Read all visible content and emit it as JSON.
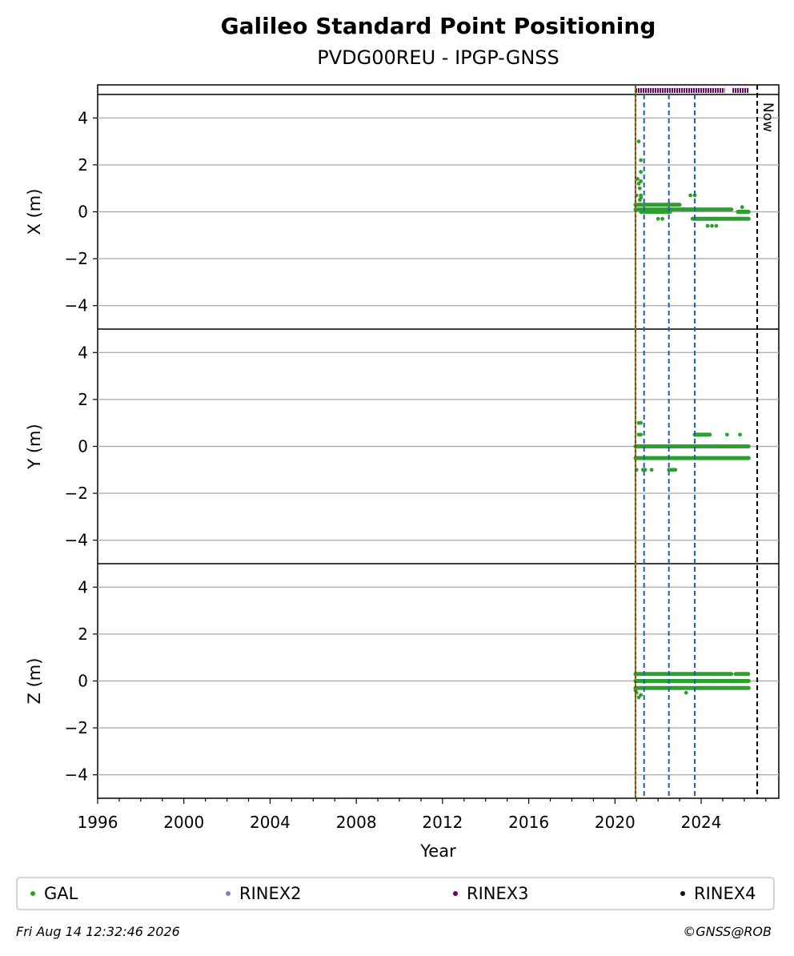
{
  "colors": {
    "gal": "#2ca02c",
    "rinex2": "#8080c0",
    "rinex3": "#660066",
    "rinex4": "#111111",
    "red_line": "#e00000",
    "blue_dash": "#1f5fb0",
    "grid": "#b0b0b0"
  },
  "footer": {
    "timestamp": "Fri Aug 14 12:32:46 2026",
    "credit": "©GNSS@ROB"
  },
  "chart_data": {
    "type": "scatter",
    "title": "Galileo Standard Point Positioning",
    "subtitle": "PVDG00REU - IPGP-GNSS",
    "xlabel": "Year",
    "xlim": [
      1996,
      2027.6
    ],
    "xticks": [
      1996,
      2000,
      2004,
      2008,
      2012,
      2016,
      2020,
      2024
    ],
    "ylim": [
      -5,
      5
    ],
    "yticks": [
      4,
      2,
      0,
      -2,
      -4
    ],
    "grid": "horizontal",
    "legend_placement": "bottom",
    "legend": [
      {
        "name": "GAL",
        "color_key": "gal"
      },
      {
        "name": "RINEX2",
        "color_key": "rinex2"
      },
      {
        "name": "RINEX3",
        "color_key": "rinex3"
      },
      {
        "name": "RINEX4",
        "color_key": "rinex4"
      }
    ],
    "now_label": "Now",
    "now_year": 2026.6,
    "red_line_year": 2020.95,
    "event_lines": [
      2021.35,
      2022.5,
      2023.7
    ],
    "rinex3_availability": {
      "y": 5.2,
      "segments": [
        [
          2020.95,
          2025.1
        ],
        [
          2025.45,
          2026.2
        ]
      ]
    },
    "panels": [
      {
        "ylabel": "X (m)",
        "series": [
          {
            "name": "GAL",
            "x": [
              2020.95,
              2023.0
            ],
            "y": [
              0.3,
              0.3
            ]
          },
          {
            "name": "GAL",
            "x": [
              2020.95,
              2023.6
            ],
            "y": [
              0.1,
              0.1
            ]
          },
          {
            "name": "GAL",
            "x": [
              2021.2,
              2022.6
            ],
            "y": [
              0.0,
              0.0
            ]
          },
          {
            "name": "GAL",
            "x": [
              2023.0,
              2025.4
            ],
            "y": [
              0.1,
              0.1
            ]
          },
          {
            "name": "GAL",
            "x": [
              2023.6,
              2026.2
            ],
            "y": [
              -0.3,
              -0.3
            ]
          },
          {
            "name": "GAL",
            "x": [
              2025.7,
              2026.2
            ],
            "y": [
              0.0,
              0.0
            ]
          }
        ],
        "outliers": {
          "x": [
            2021.0,
            2021.05,
            2021.1,
            2021.15,
            2021.2,
            2021.1,
            2021.2,
            2021.2,
            2021.0,
            2021.2,
            2021.15,
            2021.2,
            2023.5,
            2023.7,
            2022.0,
            2022.2,
            2024.3,
            2024.5,
            2024.7,
            2025.9
          ],
          "y": [
            1.4,
            1.4,
            1.2,
            1.0,
            1.3,
            3.0,
            2.2,
            1.7,
            0.7,
            0.7,
            0.5,
            0.6,
            0.7,
            0.7,
            -0.3,
            -0.3,
            -0.6,
            -0.6,
            -0.6,
            0.2
          ]
        }
      },
      {
        "ylabel": "Y (m)",
        "series": [
          {
            "name": "GAL",
            "x": [
              2020.95,
              2026.2
            ],
            "y": [
              0.0,
              0.0
            ]
          },
          {
            "name": "GAL",
            "x": [
              2020.95,
              2026.2
            ],
            "y": [
              -0.5,
              -0.5
            ]
          },
          {
            "name": "GAL",
            "x": [
              2023.7,
              2024.4
            ],
            "y": [
              0.5,
              0.5
            ]
          }
        ],
        "outliers": {
          "x": [
            2021.1,
            2021.2,
            2021.3,
            2021.4,
            2021.7,
            2022.5,
            2022.6,
            2022.7,
            2022.8,
            2021.1,
            2021.2,
            2025.2,
            2025.8,
            2021.0
          ],
          "y": [
            1.0,
            1.0,
            -1.0,
            -1.0,
            -1.0,
            -1.0,
            -1.0,
            -1.0,
            -1.0,
            0.5,
            0.5,
            0.5,
            0.5,
            -1.0
          ]
        }
      },
      {
        "ylabel": "Z (m)",
        "series": [
          {
            "name": "GAL",
            "x": [
              2020.95,
              2025.4
            ],
            "y": [
              0.3,
              0.3
            ]
          },
          {
            "name": "GAL",
            "x": [
              2020.95,
              2026.2
            ],
            "y": [
              0.0,
              0.0
            ]
          },
          {
            "name": "GAL",
            "x": [
              2020.95,
              2026.2
            ],
            "y": [
              -0.3,
              -0.3
            ]
          },
          {
            "name": "GAL",
            "x": [
              2025.6,
              2026.2
            ],
            "y": [
              0.3,
              0.3
            ]
          }
        ],
        "outliers": {
          "x": [
            2021.0,
            2021.1,
            2021.2,
            2020.95,
            2023.3
          ],
          "y": [
            -0.5,
            -0.7,
            -0.6,
            -0.4,
            -0.5
          ]
        }
      }
    ]
  }
}
